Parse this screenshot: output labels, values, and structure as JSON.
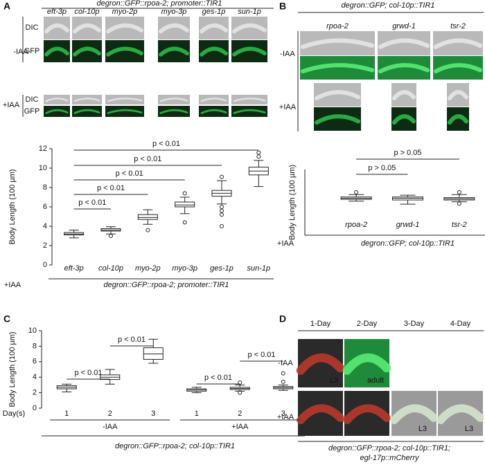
{
  "panels": {
    "A": {
      "label": "A",
      "title": "degron::GFP::rpoa-2; promoter::TIR1",
      "columns": [
        "eft-3p",
        "col-10p",
        "myo-2p",
        "myo-3p",
        "ges-1p",
        "sun-1p"
      ],
      "rows": [
        "-IAA",
        "+IAA"
      ],
      "channels": [
        "DIC",
        "GFP"
      ]
    },
    "B": {
      "label": "B",
      "title": "degron::GFP; col-10p::TIR1",
      "columns": [
        "rpoa-2",
        "grwd-1",
        "tsr-2"
      ],
      "rows": [
        "-IAA",
        "+IAA"
      ]
    },
    "C": {
      "label": "C"
    },
    "D": {
      "label": "D",
      "columns": [
        "1-Day",
        "2-Day",
        "3-Day",
        "4-Day"
      ],
      "rows": [
        "-IAA",
        "+IAA"
      ],
      "stages": [
        "L3",
        "adult",
        "L3",
        "L3"
      ],
      "caption": [
        "degron::GFP::rpoa-2; col-10p::TIR1;",
        "egl-17p::mCherry"
      ]
    }
  },
  "chart_data": [
    {
      "type": "box",
      "ylabel": "Body Length (100 µm)",
      "xlabel": "degron::GFP::rpoa-2; promoter::TIR1",
      "treatment": "+IAA",
      "categories": [
        "eft-3p",
        "col-10p",
        "myo-2p",
        "myo-3p",
        "ges-1p",
        "sun-1p"
      ],
      "boxes": [
        {
          "whislo": 2.8,
          "q1": 3.1,
          "med": 3.2,
          "q3": 3.35,
          "whishi": 3.6,
          "fliers": []
        },
        {
          "whislo": 3.2,
          "q1": 3.5,
          "med": 3.6,
          "q3": 3.75,
          "whishi": 3.95,
          "fliers": [
            3.0
          ]
        },
        {
          "whislo": 4.2,
          "q1": 4.7,
          "med": 4.9,
          "q3": 5.2,
          "whishi": 5.7,
          "fliers": [
            3.6
          ]
        },
        {
          "whislo": 5.3,
          "q1": 6.0,
          "med": 6.2,
          "q3": 6.5,
          "whishi": 7.0,
          "fliers": [
            4.4,
            7.4
          ]
        },
        {
          "whislo": 6.3,
          "q1": 7.1,
          "med": 7.4,
          "q3": 7.7,
          "whishi": 8.7,
          "fliers": [
            4.0,
            5.2,
            5.6,
            6.0,
            9.1
          ]
        },
        {
          "whislo": 8.1,
          "q1": 9.3,
          "med": 9.7,
          "q3": 10.1,
          "whishi": 10.8,
          "fliers": [
            11.2,
            11.6
          ]
        }
      ],
      "ylim": [
        0,
        12
      ],
      "yticks": [
        0,
        2,
        4,
        6,
        8,
        10,
        12
      ],
      "annotations": [
        "p < 0.01",
        "p < 0.01",
        "p < 0.01",
        "p < 0.01",
        "p < 0.01"
      ]
    },
    {
      "type": "box",
      "ylabel": "Body Length (100 µm)",
      "xlabel": "degron::GFP; col-10p::TIR1",
      "treatment": "+IAA",
      "categories": [
        "rpoa-2",
        "grwd-1",
        "tsr-2"
      ],
      "boxes": [
        {
          "whislo": 2.85,
          "q1": 3.0,
          "med": 3.1,
          "q3": 3.2,
          "whishi": 3.4,
          "fliers": [
            3.6
          ]
        },
        {
          "whislo": 2.6,
          "q1": 2.95,
          "med": 3.1,
          "q3": 3.2,
          "whishi": 3.35,
          "fliers": []
        },
        {
          "whislo": 2.8,
          "q1": 2.95,
          "med": 3.05,
          "q3": 3.15,
          "whishi": 3.4,
          "fliers": [
            2.65,
            3.6
          ]
        }
      ],
      "ylim": [
        0,
        5.5
      ],
      "annotations": [
        "p > 0.05",
        "p > 0.05"
      ]
    },
    {
      "type": "box",
      "ylabel": "Body Length (100 µm)",
      "xlabel": "degron::GFP::rpoa-2; col-10p::TIR1",
      "xname": "Day(s)",
      "categories": [
        "1",
        "2",
        "3",
        "1",
        "2",
        "3"
      ],
      "groups": [
        "-IAA",
        "+IAA"
      ],
      "boxes": [
        {
          "whislo": 2.1,
          "q1": 2.5,
          "med": 2.7,
          "q3": 2.9,
          "whishi": 3.1,
          "fliers": []
        },
        {
          "whislo": 3.1,
          "q1": 3.7,
          "med": 4.0,
          "q3": 4.3,
          "whishi": 5.0,
          "fliers": []
        },
        {
          "whislo": 5.8,
          "q1": 6.3,
          "med": 7.0,
          "q3": 7.8,
          "whishi": 8.9,
          "fliers": []
        },
        {
          "whislo": 2.0,
          "q1": 2.2,
          "med": 2.35,
          "q3": 2.5,
          "whishi": 2.7,
          "fliers": []
        },
        {
          "whislo": 2.2,
          "q1": 2.4,
          "med": 2.55,
          "q3": 2.7,
          "whishi": 3.0,
          "fliers": [
            2.0,
            3.3
          ]
        },
        {
          "whislo": 2.3,
          "q1": 2.5,
          "med": 2.65,
          "q3": 2.8,
          "whishi": 3.0,
          "fliers": [
            3.4,
            4.5
          ]
        }
      ],
      "ylim": [
        0,
        10
      ],
      "yticks": [
        0,
        2,
        4,
        6,
        8,
        10
      ],
      "annotations": [
        "p < 0.01",
        "p < 0.01",
        "p < 0.01",
        "p < 0.01"
      ]
    }
  ]
}
